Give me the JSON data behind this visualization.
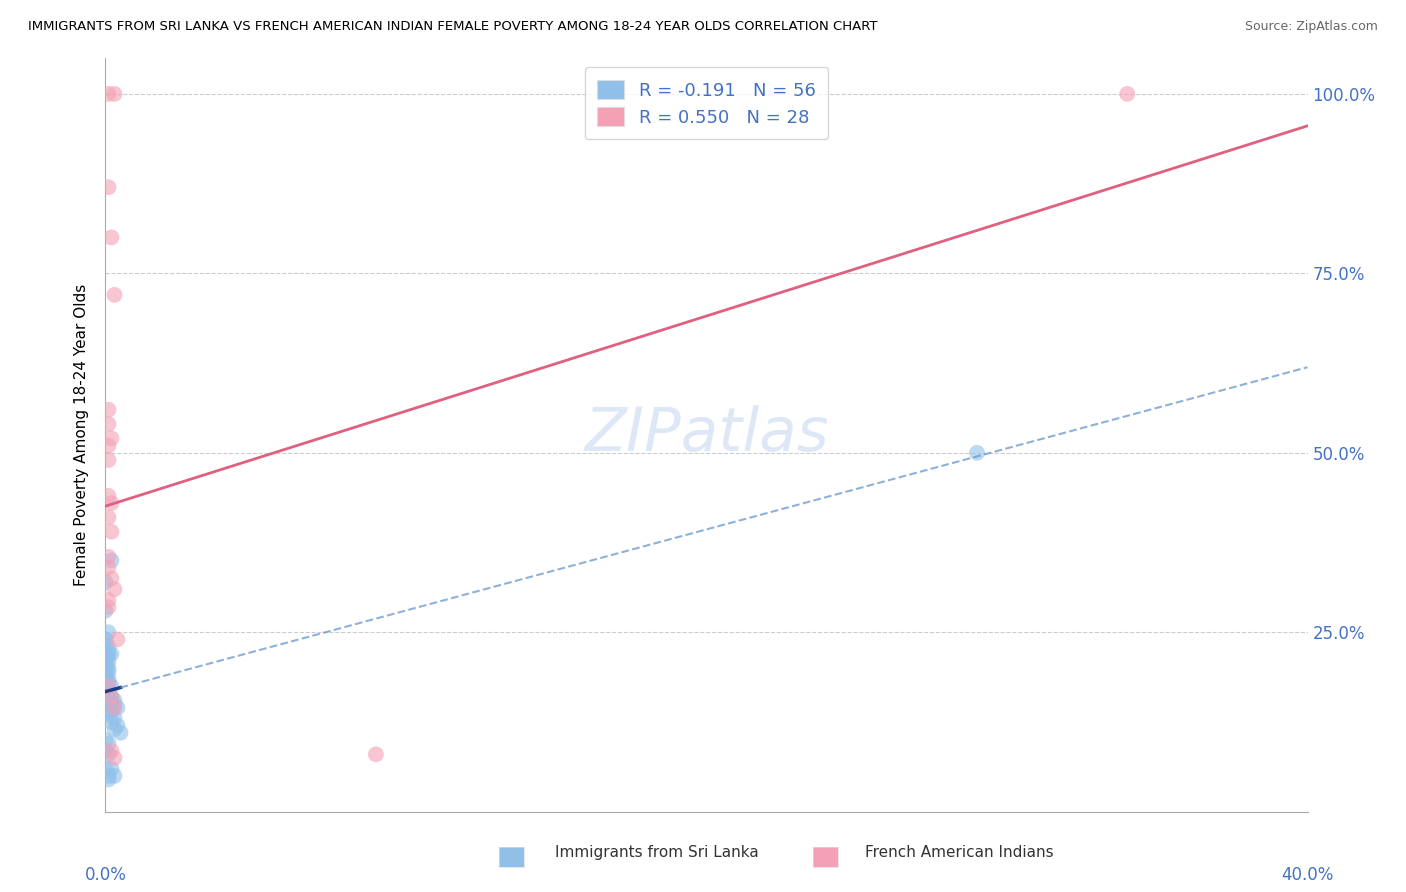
{
  "title": "IMMIGRANTS FROM SRI LANKA VS FRENCH AMERICAN INDIAN FEMALE POVERTY AMONG 18-24 YEAR OLDS CORRELATION CHART",
  "source": "Source: ZipAtlas.com",
  "ylabel": "Female Poverty Among 18-24 Year Olds",
  "legend_blue_R": "-0.191",
  "legend_blue_N": "56",
  "legend_pink_R": "0.550",
  "legend_pink_N": "28",
  "legend_label_blue": "Immigrants from Sri Lanka",
  "legend_label_pink": "French American Indians",
  "blue_color": "#90C0EA",
  "pink_color": "#F4A0B5",
  "trendline_blue_solid": "#1A3E8A",
  "trendline_blue_dashed": "#6090C8",
  "trendline_pink": "#E06080",
  "watermark_color": "#C8D8F0",
  "label_color": "#4472C4",
  "grid_color": "#CCCCCC",
  "blue_points_x": [
    0.0,
    0.0,
    0.001,
    0.002,
    0.0,
    0.001,
    0.0,
    0.0,
    0.0,
    0.001,
    0.001,
    0.002,
    0.001,
    0.0,
    0.0,
    0.0,
    0.0,
    0.001,
    0.0,
    0.001,
    0.0,
    0.0,
    0.001,
    0.0,
    0.001,
    0.002,
    0.0,
    0.001,
    0.0,
    0.001,
    0.002,
    0.003,
    0.0,
    0.001,
    0.002,
    0.0,
    0.003,
    0.004,
    0.001,
    0.002,
    0.001,
    0.003,
    0.002,
    0.004,
    0.003,
    0.005,
    0.0,
    0.001,
    0.0,
    0.001,
    0.002,
    0.0,
    0.001,
    0.003,
    0.29,
    0.001
  ],
  "blue_points_y": [
    0.32,
    0.28,
    0.22,
    0.35,
    0.24,
    0.25,
    0.23,
    0.24,
    0.22,
    0.23,
    0.22,
    0.22,
    0.21,
    0.21,
    0.21,
    0.2,
    0.2,
    0.2,
    0.195,
    0.195,
    0.19,
    0.185,
    0.185,
    0.18,
    0.18,
    0.175,
    0.175,
    0.17,
    0.165,
    0.165,
    0.16,
    0.155,
    0.155,
    0.155,
    0.15,
    0.15,
    0.148,
    0.145,
    0.14,
    0.14,
    0.135,
    0.13,
    0.125,
    0.12,
    0.115,
    0.11,
    0.1,
    0.095,
    0.085,
    0.08,
    0.06,
    0.06,
    0.05,
    0.05,
    0.5,
    0.045
  ],
  "pink_points_x": [
    0.001,
    0.003,
    0.001,
    0.002,
    0.003,
    0.001,
    0.001,
    0.002,
    0.001,
    0.001,
    0.001,
    0.002,
    0.001,
    0.002,
    0.001,
    0.001,
    0.002,
    0.003,
    0.001,
    0.001,
    0.004,
    0.001,
    0.002,
    0.003,
    0.002,
    0.003,
    0.34,
    0.09
  ],
  "pink_points_y": [
    1.0,
    1.0,
    0.87,
    0.8,
    0.72,
    0.56,
    0.54,
    0.52,
    0.51,
    0.49,
    0.44,
    0.43,
    0.41,
    0.39,
    0.355,
    0.34,
    0.325,
    0.31,
    0.295,
    0.285,
    0.24,
    0.175,
    0.16,
    0.145,
    0.085,
    0.075,
    1.0,
    0.08
  ],
  "xmin": 0.0,
  "xmax": 40.0,
  "ymin": 0.0,
  "ymax": 105.0
}
